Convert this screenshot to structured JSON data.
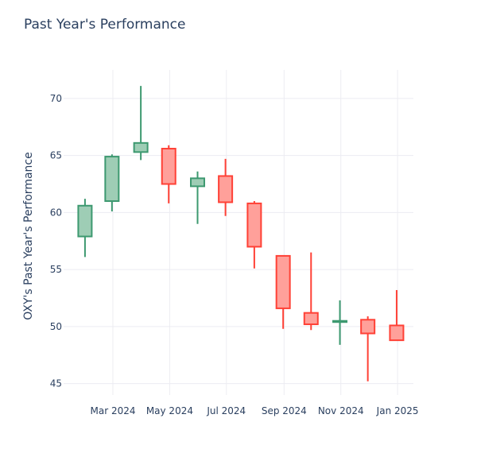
{
  "chart_title": "Past Year's Performance",
  "chart_data": {
    "type": "candlestick",
    "title": "Past Year's Performance",
    "ylabel": "OXY's Past Year's Performance",
    "xlabel": "",
    "ylim": [
      44,
      72.5
    ],
    "yticks": [
      45,
      50,
      55,
      60,
      65,
      70
    ],
    "xlim": [
      "2024-01-08",
      "2025-01-18"
    ],
    "xticks": [
      {
        "date": "2024-03-01",
        "label": "Mar 2024"
      },
      {
        "date": "2024-05-01",
        "label": "May 2024"
      },
      {
        "date": "2024-07-01",
        "label": "Jul 2024"
      },
      {
        "date": "2024-09-01",
        "label": "Sep 2024"
      },
      {
        "date": "2024-11-01",
        "label": "Nov 2024"
      },
      {
        "date": "2025-01-01",
        "label": "Jan 2025"
      }
    ],
    "increasing_color": "#3d9970",
    "increasing_fill": "#9ecdb5",
    "decreasing_color": "#ff4136",
    "decreasing_fill": "#ffa09a",
    "grid": true,
    "candles": [
      {
        "date": "2024-01-31",
        "open": 57.9,
        "high": 61.2,
        "low": 56.1,
        "close": 60.6
      },
      {
        "date": "2024-02-29",
        "open": 61.0,
        "high": 65.1,
        "low": 60.1,
        "close": 64.9
      },
      {
        "date": "2024-03-31",
        "open": 65.3,
        "high": 71.1,
        "low": 64.6,
        "close": 66.1
      },
      {
        "date": "2024-04-30",
        "open": 65.6,
        "high": 65.9,
        "low": 60.8,
        "close": 62.5
      },
      {
        "date": "2024-05-31",
        "open": 62.3,
        "high": 63.6,
        "low": 59.0,
        "close": 63.0
      },
      {
        "date": "2024-06-30",
        "open": 63.2,
        "high": 64.7,
        "low": 59.7,
        "close": 60.9
      },
      {
        "date": "2024-07-31",
        "open": 60.8,
        "high": 61.0,
        "low": 55.1,
        "close": 57.0
      },
      {
        "date": "2024-08-31",
        "open": 56.2,
        "high": 56.2,
        "low": 49.8,
        "close": 51.6
      },
      {
        "date": "2024-09-30",
        "open": 51.2,
        "high": 56.5,
        "low": 49.7,
        "close": 50.2
      },
      {
        "date": "2024-10-31",
        "open": 50.5,
        "high": 52.3,
        "low": 48.4,
        "close": 50.5
      },
      {
        "date": "2024-11-30",
        "open": 50.6,
        "high": 50.9,
        "low": 45.2,
        "close": 49.4
      },
      {
        "date": "2024-12-31",
        "open": 50.1,
        "high": 53.2,
        "low": 48.8,
        "close": 48.8
      }
    ]
  }
}
